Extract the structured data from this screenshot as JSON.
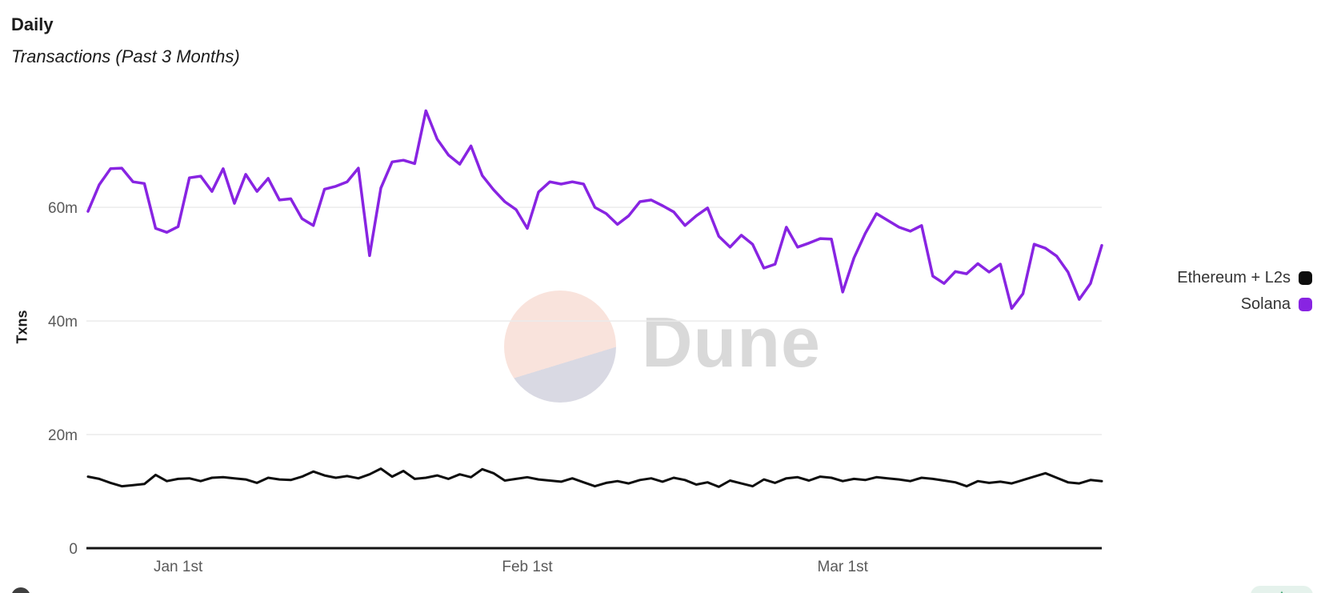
{
  "header": {
    "title": "Daily",
    "subtitle": "Transactions (Past 3 Months)"
  },
  "watermark": {
    "text": "Dune"
  },
  "legend": [
    {
      "label": "Ethereum + L2s",
      "color": "#0d0d0d"
    },
    {
      "label": "Solana",
      "color": "#8824e2"
    }
  ],
  "colors": {
    "solana_line": "#8824e2",
    "ethereum_line": "#0d0d0d",
    "gridline": "#ebebeb",
    "axis": "#141414",
    "tick_text": "#5a5a5a",
    "watermark_text": "#d9d9d9",
    "watermark_peach": "#f9e3dc",
    "watermark_lavender": "#d9d9e3"
  },
  "chart_data": {
    "type": "line",
    "title": "Daily",
    "subtitle": "Transactions (Past 3 Months)",
    "ylabel": "Txns",
    "unit": "millions of transactions per day",
    "x_unit": "day",
    "n_points": 91,
    "grid": "horizontal-only",
    "legend_position": "right",
    "ylim": [
      0,
      80.3
    ],
    "y_ticks": [
      {
        "value": 0,
        "label": "0"
      },
      {
        "value": 20,
        "label": "20m"
      },
      {
        "value": 40,
        "label": "40m"
      },
      {
        "value": 60,
        "label": "60m"
      }
    ],
    "x_ticks": [
      {
        "day": 8,
        "label": "Jan 1st"
      },
      {
        "day": 39,
        "label": "Feb 1st"
      },
      {
        "day": 67,
        "label": "Mar 1st"
      }
    ],
    "series": [
      {
        "name": "Ethereum + L2s",
        "color": "#0d0d0d",
        "values": [
          12.6,
          12.2,
          11.5,
          10.9,
          11.1,
          11.3,
          12.9,
          11.8,
          12.2,
          12.3,
          11.8,
          12.4,
          12.5,
          12.3,
          12.1,
          11.5,
          12.4,
          12.1,
          12.0,
          12.6,
          13.5,
          12.8,
          12.4,
          12.7,
          12.3,
          13.0,
          14.0,
          12.6,
          13.6,
          12.2,
          12.4,
          12.8,
          12.2,
          13.0,
          12.5,
          13.9,
          13.2,
          11.9,
          12.2,
          12.5,
          12.1,
          11.9,
          11.7,
          12.3,
          11.6,
          10.9,
          11.5,
          11.8,
          11.4,
          12.0,
          12.3,
          11.7,
          12.4,
          12.0,
          11.2,
          11.6,
          10.8,
          11.9,
          11.4,
          10.9,
          12.1,
          11.5,
          12.3,
          12.5,
          11.9,
          12.6,
          12.4,
          11.8,
          12.2,
          12.0,
          12.5,
          12.3,
          12.1,
          11.8,
          12.4,
          12.2,
          11.9,
          11.6,
          10.9,
          11.8,
          11.5,
          11.7,
          11.4,
          12.0,
          12.6,
          13.2,
          12.4,
          11.6,
          11.4,
          12.0,
          11.8
        ]
      },
      {
        "name": "Solana",
        "color": "#8824e2",
        "values": [
          59.3,
          64.0,
          66.8,
          66.9,
          64.5,
          64.2,
          56.3,
          55.6,
          56.6,
          65.2,
          65.5,
          62.8,
          66.8,
          60.7,
          65.8,
          62.8,
          65.1,
          61.3,
          61.5,
          58.0,
          56.8,
          63.2,
          63.7,
          64.5,
          66.9,
          51.5,
          63.4,
          68.0,
          68.3,
          67.7,
          77.0,
          72.0,
          69.2,
          67.6,
          70.8,
          65.6,
          63.1,
          61.0,
          59.6,
          56.3,
          62.7,
          64.5,
          64.1,
          64.5,
          64.1,
          60.0,
          58.9,
          57.0,
          58.5,
          61.0,
          61.3,
          60.3,
          59.2,
          56.8,
          58.5,
          59.9,
          54.9,
          53.0,
          55.1,
          53.5,
          49.3,
          50.0,
          56.5,
          53.0,
          53.7,
          54.5,
          54.4,
          45.1,
          51.1,
          55.4,
          58.9,
          57.7,
          56.5,
          55.8,
          56.8,
          47.9,
          46.6,
          48.7,
          48.3,
          50.1,
          48.6,
          50.0,
          42.2,
          44.8,
          53.5,
          52.8,
          51.4,
          48.6,
          43.8,
          46.6,
          53.3
        ]
      }
    ]
  },
  "partials": {
    "action_glyph": "✦"
  }
}
